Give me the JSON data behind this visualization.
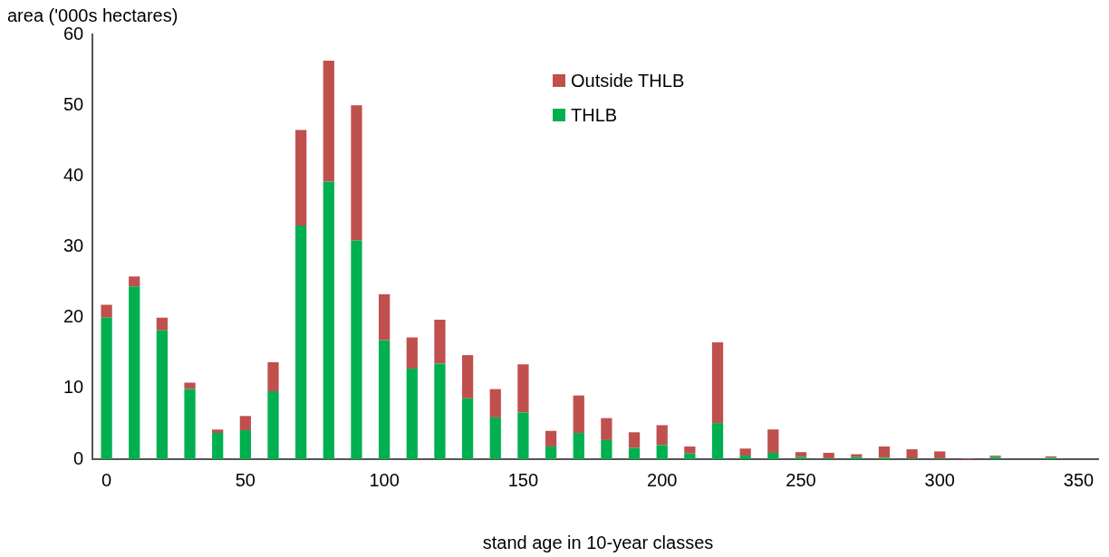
{
  "chart_data": {
    "type": "bar",
    "stacked": true,
    "xlabel": "stand age in 10-year classes",
    "ylabel": "area ('000s hectares)",
    "x": [
      0,
      10,
      20,
      30,
      40,
      50,
      60,
      70,
      80,
      90,
      100,
      110,
      120,
      130,
      140,
      150,
      160,
      170,
      180,
      190,
      200,
      210,
      220,
      230,
      240,
      250,
      260,
      270,
      280,
      290,
      300,
      310,
      320,
      330,
      340
    ],
    "series": [
      {
        "name": "THLB",
        "color": "#00b050",
        "values": [
          20.0,
          24.4,
          18.2,
          9.9,
          3.7,
          4.1,
          9.6,
          33.0,
          39.2,
          30.9,
          16.8,
          12.8,
          13.5,
          8.6,
          5.9,
          6.6,
          1.8,
          3.7,
          2.7,
          1.6,
          2.0,
          0.8,
          5.1,
          0.5,
          0.9,
          0.3,
          0.1,
          0.3,
          0.2,
          0.1,
          0.1,
          0,
          0.3,
          0,
          0.2
        ]
      },
      {
        "name": "Outside THLB",
        "color": "#c0504d",
        "values": [
          1.8,
          1.4,
          1.8,
          0.9,
          0.5,
          2.0,
          4.1,
          13.5,
          17.1,
          19.1,
          6.5,
          4.4,
          6.2,
          6.1,
          4.0,
          6.8,
          2.2,
          5.3,
          3.1,
          2.2,
          2.8,
          1.0,
          11.4,
          1.0,
          3.3,
          0.7,
          0.8,
          0.4,
          1.6,
          1.3,
          1.0,
          0.1,
          0.2,
          0,
          0.2
        ]
      }
    ],
    "xlim": [
      -5,
      357
    ],
    "xticks": [
      0,
      50,
      100,
      150,
      200,
      250,
      300,
      350
    ],
    "ylim": [
      0,
      60
    ],
    "yticks": [
      0,
      10,
      20,
      30,
      40,
      50,
      60
    ],
    "grid": false,
    "legend": "top"
  }
}
